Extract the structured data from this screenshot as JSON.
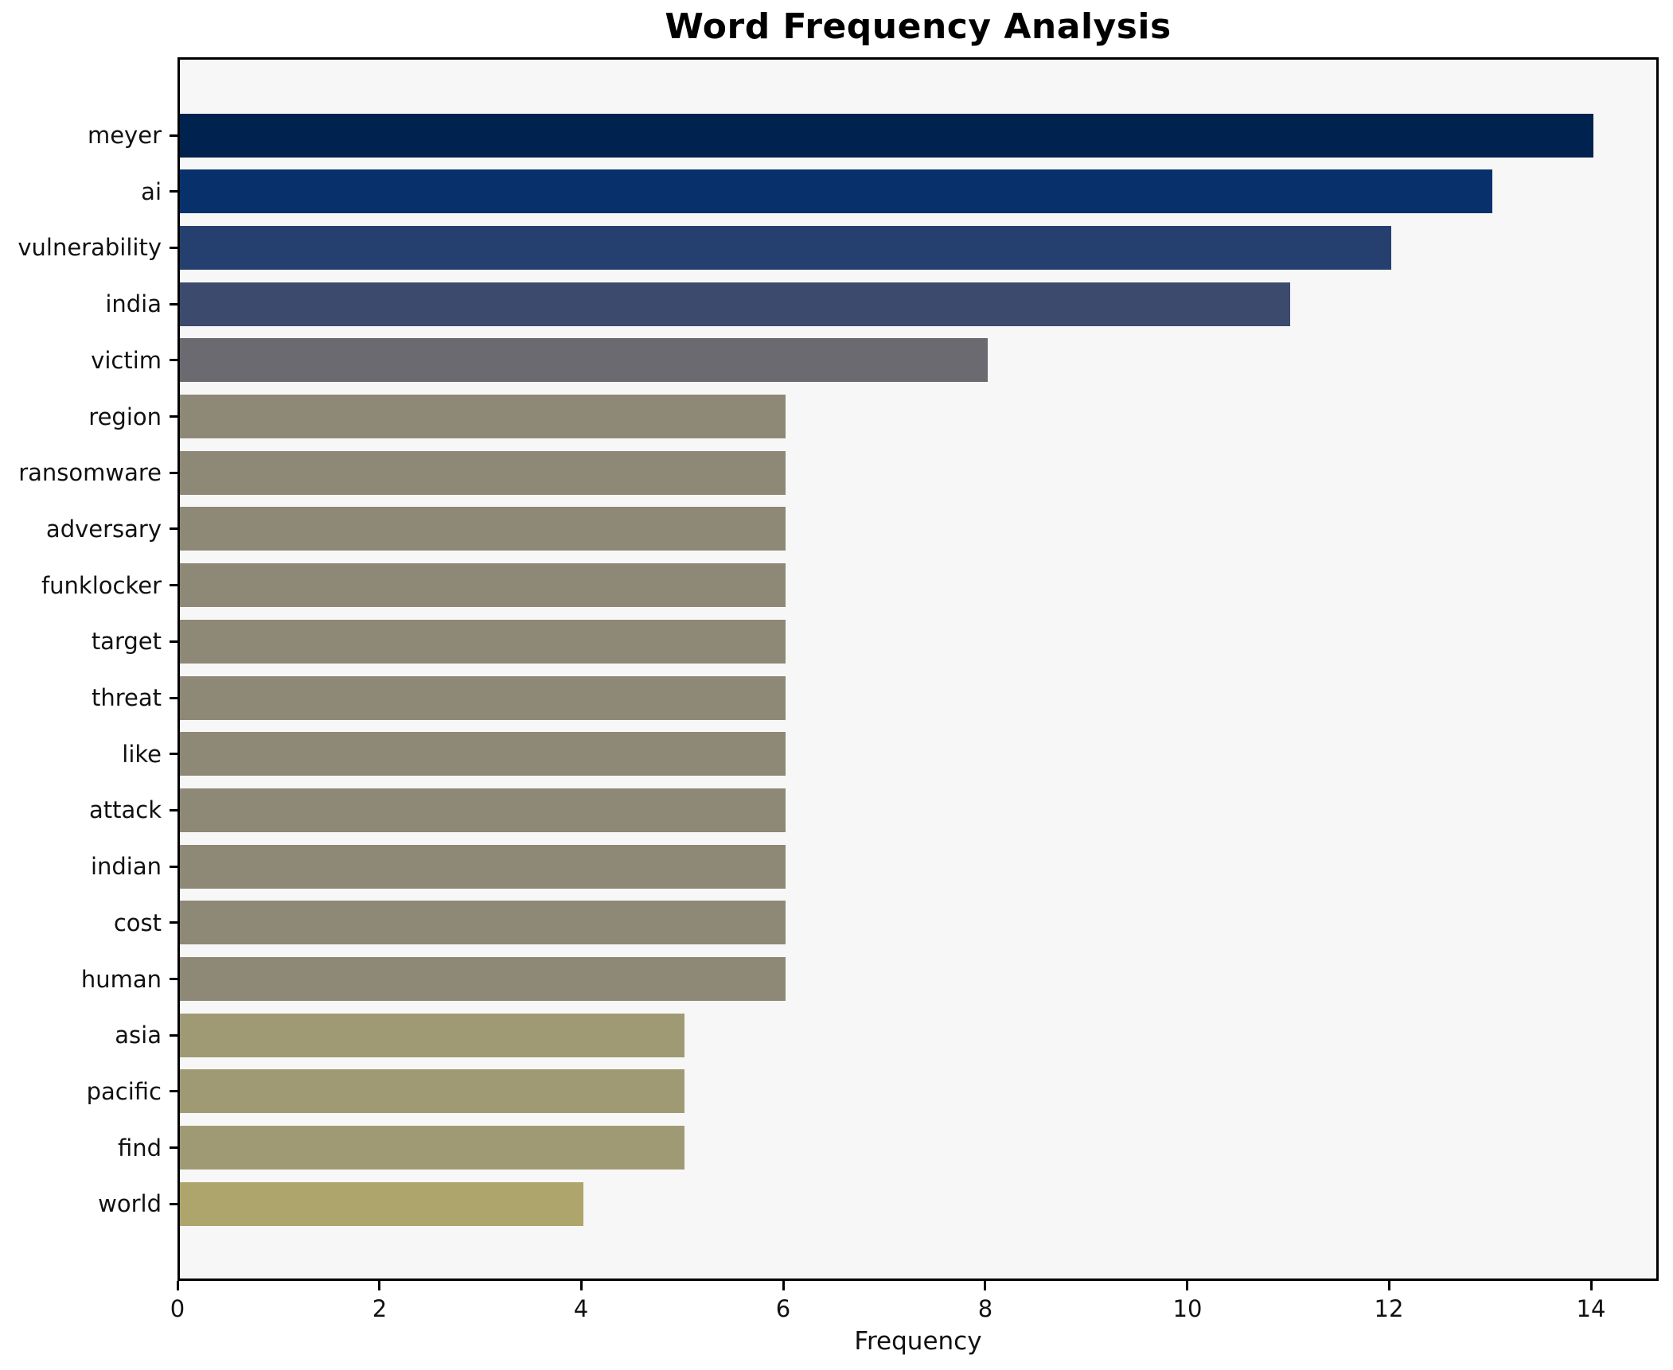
{
  "chart_data": {
    "type": "bar",
    "orientation": "horizontal",
    "title": "Word Frequency Analysis",
    "xlabel": "Frequency",
    "ylabel": "",
    "categories": [
      "meyer",
      "ai",
      "vulnerability",
      "india",
      "victim",
      "region",
      "ransomware",
      "adversary",
      "funklocker",
      "target",
      "threat",
      "like",
      "attack",
      "indian",
      "cost",
      "human",
      "asia",
      "pacific",
      "find",
      "world"
    ],
    "values": [
      14,
      13,
      12,
      11,
      8,
      6,
      6,
      6,
      6,
      6,
      6,
      6,
      6,
      6,
      6,
      6,
      5,
      5,
      5,
      4
    ],
    "bar_colors": [
      "#00224e",
      "#08316b",
      "#25406e",
      "#3c4a6e",
      "#6a6a70",
      "#8e8876",
      "#8e8876",
      "#8e8876",
      "#8e8876",
      "#8e8876",
      "#8e8876",
      "#8e8876",
      "#8e8876",
      "#8e8876",
      "#8e8876",
      "#8e8876",
      "#a09a74",
      "#a09a74",
      "#a09a74",
      "#ada56b"
    ],
    "xlim": [
      0,
      14.67
    ],
    "xticks": [
      0,
      2,
      4,
      6,
      8,
      10,
      12,
      14
    ],
    "grid": "off",
    "legend": "none",
    "plot_background": "#f7f7f7",
    "spine_color": "#000000"
  }
}
